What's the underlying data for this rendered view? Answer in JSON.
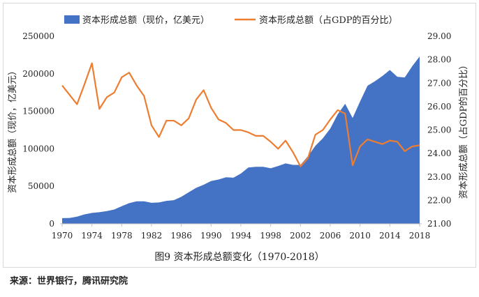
{
  "chart_data": {
    "type": "area+line",
    "caption": "图9 资本形成总额变化（1970-2018）",
    "source": "来源：世界银行，腾讯研究院",
    "legend": [
      {
        "name": "资本形成总额（现价，亿美元）",
        "color": "#4472C4",
        "kind": "area"
      },
      {
        "name": "资本形成总额（占GDP的百分比）",
        "color": "#ED7D31",
        "kind": "line"
      }
    ],
    "left_axis": {
      "label": "资本形成总额（现价，亿美元）",
      "range": [
        0,
        250000
      ],
      "ticks": [
        "0",
        "50000",
        "100000",
        "150000",
        "200000",
        "250000"
      ],
      "tick_values": [
        0,
        50000,
        100000,
        150000,
        200000,
        250000
      ]
    },
    "right_axis": {
      "label": "资本形成总额（占GDP的百分比）",
      "range": [
        21.0,
        29.0
      ],
      "ticks": [
        "21.00",
        "22.00",
        "23.00",
        "24.00",
        "25.00",
        "26.00",
        "27.00",
        "28.00",
        "29.00"
      ],
      "tick_values": [
        21,
        22,
        23,
        24,
        25,
        26,
        27,
        28,
        29
      ]
    },
    "x_axis": {
      "ticks": [
        "1970",
        "1974",
        "1978",
        "1982",
        "1986",
        "1990",
        "1994",
        "1998",
        "2002",
        "2006",
        "2010",
        "2014",
        "2018"
      ],
      "range": [
        1970,
        2018
      ]
    },
    "years": [
      1970,
      1971,
      1972,
      1973,
      1974,
      1975,
      1976,
      1977,
      1978,
      1979,
      1980,
      1981,
      1982,
      1983,
      1984,
      1985,
      1986,
      1987,
      1988,
      1989,
      1990,
      1991,
      1992,
      1993,
      1994,
      1995,
      1996,
      1997,
      1998,
      1999,
      2000,
      2001,
      2002,
      2003,
      2004,
      2005,
      2006,
      2007,
      2008,
      2009,
      2010,
      2011,
      2012,
      2013,
      2014,
      2015,
      2016,
      2017,
      2018
    ],
    "series": [
      {
        "name": "资本形成总额（现价，亿美元）",
        "axis": "left",
        "values": [
          7500,
          7800,
          9500,
          12500,
          14500,
          15500,
          17000,
          19000,
          23500,
          27500,
          30000,
          30000,
          28000,
          28500,
          30500,
          31500,
          36000,
          42000,
          48000,
          52000,
          57000,
          59000,
          62000,
          61500,
          67000,
          75000,
          76000,
          76000,
          74000,
          77000,
          80500,
          78500,
          78500,
          90000,
          104000,
          114000,
          127000,
          146000,
          160000,
          141000,
          163000,
          184000,
          190000,
          197000,
          205000,
          196000,
          195000,
          210000,
          223000
        ]
      },
      {
        "name": "资本形成总额（占GDP的百分比）",
        "axis": "right",
        "values": [
          26.9,
          26.5,
          26.1,
          26.95,
          27.85,
          25.9,
          26.4,
          26.6,
          27.25,
          27.45,
          26.9,
          26.45,
          25.2,
          24.7,
          25.4,
          25.4,
          25.2,
          25.5,
          26.3,
          26.7,
          25.95,
          25.45,
          25.3,
          25.0,
          25.0,
          24.9,
          24.75,
          24.75,
          24.5,
          24.2,
          24.55,
          24.05,
          23.45,
          23.8,
          24.8,
          25.0,
          25.45,
          25.85,
          25.7,
          23.5,
          24.3,
          24.6,
          24.5,
          24.4,
          24.55,
          24.5,
          24.1,
          24.3,
          24.35
        ]
      }
    ]
  }
}
